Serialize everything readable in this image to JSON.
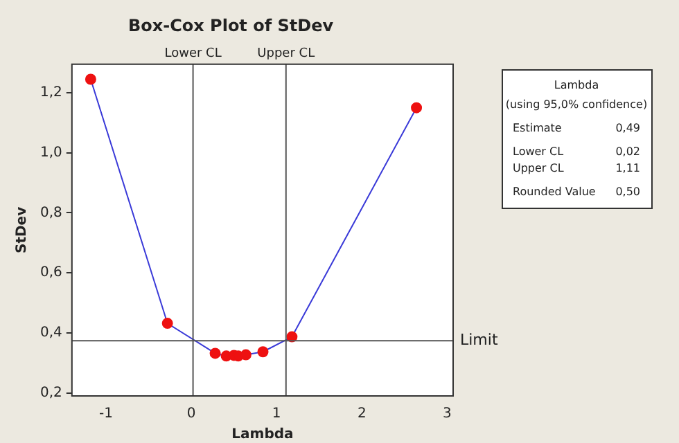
{
  "chart_data": {
    "type": "line",
    "title": "Box-Cox Plot of StDev",
    "xlabel": "Lambda",
    "ylabel": "StDev",
    "x": [
      -1.18,
      -0.28,
      0.28,
      0.41,
      0.5,
      0.55,
      0.64,
      0.84,
      1.18,
      2.64
    ],
    "series": [
      {
        "color": "#3a3ad8",
        "colors": [
          "#ee1111",
          "#ee1111",
          "#ee1111",
          "#ee1111",
          "#ee1111",
          "#ee1111",
          "#ee1111",
          "#ee1111",
          "#ee1111",
          "#ee1111"
        ],
        "values": [
          1.245,
          0.432,
          0.332,
          0.323,
          0.325,
          0.323,
          0.327,
          0.337,
          0.387,
          1.15
        ]
      }
    ],
    "marker": "circle",
    "xlim": [
      -1.4,
      3.07
    ],
    "xticks": [
      -1,
      0,
      1,
      2,
      3
    ],
    "ylim": [
      0.19,
      1.295
    ],
    "yticks": [
      {
        "value": 0.2,
        "label": "0,2"
      },
      {
        "value": 0.4,
        "label": "0,4"
      },
      {
        "value": 0.6,
        "label": "0,6"
      },
      {
        "value": 0.8,
        "label": "0,8"
      },
      {
        "value": 1.0,
        "label": "1,0"
      },
      {
        "value": 1.2,
        "label": "1,2"
      }
    ],
    "grid": false,
    "legend": false,
    "ref_lines": [
      {
        "axis": "x",
        "value": 0.02,
        "label": "Lower CL",
        "color": "#555555"
      },
      {
        "axis": "x",
        "value": 1.11,
        "label": "Upper CL",
        "color": "#555555"
      },
      {
        "axis": "y",
        "value": 0.374,
        "label": "Limit",
        "color": "#555555"
      }
    ],
    "annotations": [
      "Lambda",
      "(using 95,0% confidence)",
      "Estimate",
      "0,49",
      "Lower CL",
      "0,02",
      "Upper CL",
      "1,11",
      "Rounded Value",
      "0,50"
    ]
  }
}
